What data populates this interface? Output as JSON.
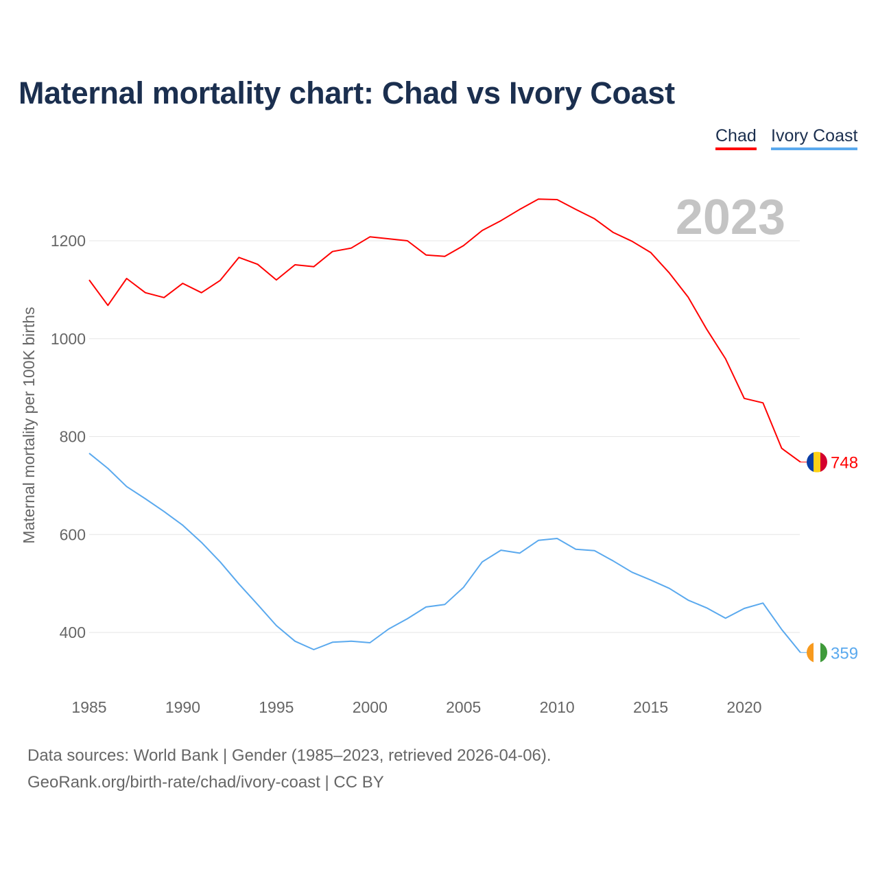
{
  "title": "Maternal mortality chart: Chad vs Ivory Coast",
  "year_label": "2023",
  "footer": {
    "sources": "Data sources: World Bank | Gender (1985–2023, retrieved 2026-04-06).",
    "link": "GeoRank.org/birth-rate/chad/ivory-coast | CC BY"
  },
  "chart_data": {
    "type": "line",
    "title": "Maternal mortality chart: Chad vs Ivory Coast",
    "xlabel": "",
    "ylabel": "Maternal mortality per 100K births",
    "xlim": [
      1985,
      2023
    ],
    "ylim": [
      300,
      1300
    ],
    "x_ticks": [
      1985,
      1990,
      1995,
      2000,
      2005,
      2010,
      2015,
      2020
    ],
    "y_ticks": [
      400,
      600,
      800,
      1000,
      1200
    ],
    "grid": true,
    "legend": "top-right",
    "x": [
      1985,
      1986,
      1987,
      1988,
      1989,
      1990,
      1991,
      1992,
      1993,
      1994,
      1995,
      1996,
      1997,
      1998,
      1999,
      2000,
      2001,
      2002,
      2003,
      2004,
      2005,
      2006,
      2007,
      2008,
      2009,
      2010,
      2011,
      2012,
      2013,
      2014,
      2015,
      2016,
      2017,
      2018,
      2019,
      2020,
      2021,
      2022,
      2023
    ],
    "series": [
      {
        "name": "Chad",
        "color": "#ff0000",
        "end_label": "748",
        "values": [
          1120,
          1068,
          1123,
          1094,
          1084,
          1113,
          1094,
          1119,
          1166,
          1152,
          1120,
          1151,
          1147,
          1178,
          1185,
          1208,
          1204,
          1200,
          1171,
          1168,
          1190,
          1221,
          1241,
          1264,
          1285,
          1284,
          1264,
          1245,
          1217,
          1199,
          1176,
          1134,
          1085,
          1019,
          959,
          878,
          869,
          776,
          748
        ]
      },
      {
        "name": "Ivory Coast",
        "color": "#5aa9ee",
        "end_label": "359",
        "values": [
          766,
          735,
          698,
          673,
          647,
          619,
          584,
          544,
          499,
          457,
          414,
          382,
          365,
          380,
          382,
          379,
          407,
          428,
          452,
          457,
          492,
          544,
          568,
          562,
          588,
          592,
          570,
          567,
          546,
          523,
          507,
          490,
          466,
          450,
          429,
          449,
          460,
          406,
          359
        ]
      }
    ]
  }
}
